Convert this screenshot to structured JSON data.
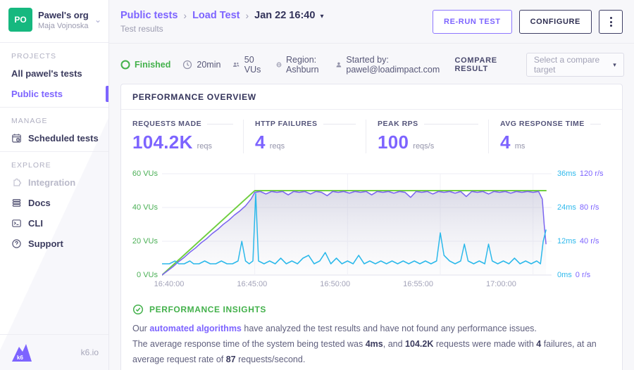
{
  "icons": {
    "chevron_down": "⌄",
    "breadcrumb_sep": "›",
    "caret_down": "▾"
  },
  "colors": {
    "accent_purple": "#7d64ff",
    "status_green": "#43b14b",
    "chart_green": "#6fce3f",
    "chart_purple": "#7b65f0",
    "chart_cyan": "#29b8ea",
    "avatar_green": "#16b87f"
  },
  "sidebar": {
    "org": {
      "avatar_initials": "PO",
      "name": "Pawel's org",
      "subtitle": "Maja Vojnoska"
    },
    "sections": [
      {
        "label": "PROJECTS",
        "items": [
          {
            "label": "All pawel's tests"
          },
          {
            "label": "Public tests"
          }
        ]
      },
      {
        "label": "MANAGE",
        "items": [
          {
            "label": "Scheduled tests"
          }
        ]
      },
      {
        "label": "EXPLORE",
        "items": [
          {
            "label": "Integration"
          },
          {
            "label": "Docs"
          },
          {
            "label": "CLI"
          },
          {
            "label": "Support"
          }
        ]
      }
    ],
    "footer": {
      "logo_text": "k6",
      "site": "k6.io"
    }
  },
  "header": {
    "breadcrumb": [
      "Public tests",
      "Load Test"
    ],
    "current": "Jan 22 16:40",
    "subtitle": "Test results",
    "rerun_label": "RE-RUN TEST",
    "configure_label": "CONFIGURE"
  },
  "status_bar": {
    "status": "Finished",
    "duration": "20min",
    "vus": "50 VUs",
    "region": "Region: Ashburn",
    "started_by": "Started by: pawel@loadimpact.com",
    "compare_label": "COMPARE RESULT",
    "compare_placeholder": "Select a compare target"
  },
  "overview": {
    "title": "PERFORMANCE OVERVIEW",
    "metrics": [
      {
        "label": "REQUESTS MADE",
        "value": "104.2K",
        "unit": "reqs"
      },
      {
        "label": "HTTP FAILURES",
        "value": "4",
        "unit": "reqs"
      },
      {
        "label": "PEAK RPS",
        "value": "100",
        "unit": "reqs/s"
      },
      {
        "label": "AVG RESPONSE TIME",
        "value": "4",
        "unit": "ms"
      }
    ]
  },
  "chart_data": {
    "type": "line",
    "title": "Performance overview timeline",
    "x_unit": "time (HH:MM:SS)",
    "x_ticks": [
      "16:40:00",
      "16:45:00",
      "16:50:00",
      "16:55:00",
      "17:00:00"
    ],
    "x_tick_minutes": [
      0,
      5,
      10,
      15,
      20
    ],
    "x_range_minutes": [
      0,
      21
    ],
    "grid": true,
    "legend": "none",
    "axes": {
      "left": {
        "label": "VUs",
        "ticks": [
          "60 VUs",
          "40 VUs",
          "20 VUs",
          "0 VUs"
        ],
        "max": 60
      },
      "right_ms": {
        "label": "ms",
        "ticks": [
          "36ms",
          "24ms",
          "12ms",
          "0ms"
        ],
        "max": 36
      },
      "right_rps": {
        "label": "r/s",
        "ticks": [
          "120 r/s",
          "80 r/s",
          "40 r/s",
          "0 r/s"
        ],
        "max": 120
      }
    },
    "series": [
      {
        "name": "VUs",
        "axis": "left",
        "color": "#6fce3f",
        "fill": false,
        "points": [
          [
            0,
            0
          ],
          [
            5,
            50
          ],
          [
            20.7,
            50
          ]
        ]
      },
      {
        "name": "Request rate",
        "axis": "right_rps",
        "color": "#7b65f0",
        "fill": true,
        "points": [
          [
            0,
            0
          ],
          [
            0.3,
            5
          ],
          [
            0.6,
            10
          ],
          [
            0.9,
            16
          ],
          [
            1.2,
            21
          ],
          [
            1.5,
            27
          ],
          [
            1.8,
            32
          ],
          [
            2.1,
            38
          ],
          [
            2.4,
            43
          ],
          [
            2.7,
            49
          ],
          [
            3.0,
            54
          ],
          [
            3.3,
            60
          ],
          [
            3.6,
            65
          ],
          [
            3.9,
            71
          ],
          [
            4.2,
            76
          ],
          [
            4.5,
            82
          ],
          [
            4.8,
            90
          ],
          [
            5.0,
            98
          ],
          [
            5.3,
            99
          ],
          [
            5.6,
            96
          ],
          [
            5.9,
            99
          ],
          [
            6.2,
            98
          ],
          [
            6.5,
            99
          ],
          [
            6.8,
            95
          ],
          [
            7.1,
            99
          ],
          [
            7.4,
            98
          ],
          [
            7.7,
            99
          ],
          [
            8.0,
            96
          ],
          [
            8.3,
            99
          ],
          [
            8.6,
            98
          ],
          [
            8.9,
            94
          ],
          [
            9.2,
            99
          ],
          [
            9.5,
            98
          ],
          [
            9.8,
            99
          ],
          [
            10.1,
            97
          ],
          [
            10.4,
            99
          ],
          [
            10.7,
            98
          ],
          [
            11.0,
            99
          ],
          [
            11.3,
            95
          ],
          [
            11.6,
            99
          ],
          [
            11.9,
            98
          ],
          [
            12.2,
            99
          ],
          [
            12.5,
            97
          ],
          [
            12.8,
            99
          ],
          [
            13.1,
            98
          ],
          [
            13.4,
            92
          ],
          [
            13.7,
            99
          ],
          [
            14.0,
            98
          ],
          [
            14.3,
            99
          ],
          [
            14.6,
            96
          ],
          [
            14.9,
            99
          ],
          [
            15.2,
            98
          ],
          [
            15.5,
            99
          ],
          [
            15.8,
            97
          ],
          [
            16.1,
            99
          ],
          [
            16.4,
            93
          ],
          [
            16.7,
            99
          ],
          [
            17.0,
            98
          ],
          [
            17.3,
            99
          ],
          [
            17.6,
            96
          ],
          [
            17.9,
            99
          ],
          [
            18.2,
            98
          ],
          [
            18.5,
            99
          ],
          [
            18.8,
            97
          ],
          [
            19.1,
            99
          ],
          [
            19.4,
            98
          ],
          [
            19.7,
            99
          ],
          [
            20.0,
            98
          ],
          [
            20.3,
            99
          ],
          [
            20.5,
            90
          ],
          [
            20.6,
            60
          ],
          [
            20.7,
            37
          ]
        ]
      },
      {
        "name": "Response time",
        "axis": "right_ms",
        "color": "#29b8ea",
        "fill": false,
        "points": [
          [
            0,
            4
          ],
          [
            0.4,
            4
          ],
          [
            0.7,
            5
          ],
          [
            0.9,
            4
          ],
          [
            1.2,
            4
          ],
          [
            1.5,
            5
          ],
          [
            1.7,
            4
          ],
          [
            2.0,
            4
          ],
          [
            2.3,
            5
          ],
          [
            2.6,
            4
          ],
          [
            2.9,
            4
          ],
          [
            3.2,
            5
          ],
          [
            3.5,
            4
          ],
          [
            3.8,
            4
          ],
          [
            4.1,
            5
          ],
          [
            4.3,
            12
          ],
          [
            4.5,
            5
          ],
          [
            4.7,
            4
          ],
          [
            4.9,
            5
          ],
          [
            5.05,
            29
          ],
          [
            5.2,
            5
          ],
          [
            5.5,
            4
          ],
          [
            5.8,
            5
          ],
          [
            6.1,
            4
          ],
          [
            6.4,
            6
          ],
          [
            6.7,
            4
          ],
          [
            7.0,
            5
          ],
          [
            7.3,
            4
          ],
          [
            7.6,
            6
          ],
          [
            7.9,
            7
          ],
          [
            8.2,
            4
          ],
          [
            8.5,
            5
          ],
          [
            8.8,
            8
          ],
          [
            9.1,
            4
          ],
          [
            9.4,
            6
          ],
          [
            9.7,
            4
          ],
          [
            10.0,
            5
          ],
          [
            10.3,
            4
          ],
          [
            10.6,
            7
          ],
          [
            10.9,
            4
          ],
          [
            11.2,
            5
          ],
          [
            11.5,
            4
          ],
          [
            11.8,
            5
          ],
          [
            12.1,
            4
          ],
          [
            12.4,
            5
          ],
          [
            12.7,
            4
          ],
          [
            13.0,
            5
          ],
          [
            13.3,
            4
          ],
          [
            13.6,
            5
          ],
          [
            13.9,
            4
          ],
          [
            14.2,
            5
          ],
          [
            14.5,
            4
          ],
          [
            14.8,
            5
          ],
          [
            15.0,
            15
          ],
          [
            15.2,
            7
          ],
          [
            15.5,
            5
          ],
          [
            15.8,
            4
          ],
          [
            16.1,
            5
          ],
          [
            16.3,
            11
          ],
          [
            16.5,
            5
          ],
          [
            16.8,
            4
          ],
          [
            17.1,
            5
          ],
          [
            17.4,
            4
          ],
          [
            17.6,
            11
          ],
          [
            17.8,
            5
          ],
          [
            18.1,
            4
          ],
          [
            18.4,
            5
          ],
          [
            18.7,
            4
          ],
          [
            19.0,
            6
          ],
          [
            19.3,
            4
          ],
          [
            19.6,
            5
          ],
          [
            19.9,
            4
          ],
          [
            20.2,
            5
          ],
          [
            20.4,
            4
          ],
          [
            20.55,
            12
          ],
          [
            20.7,
            16
          ]
        ]
      }
    ]
  },
  "insights": {
    "title": "PERFORMANCE INSIGHTS",
    "p1_pre": "Our ",
    "p1_link": "automated algorithms",
    "p1_post": " have analyzed the test results and have not found any performance issues.",
    "p2_s1": "The average response time of the system being tested was ",
    "p2_b1": "4ms",
    "p2_s2": ", and ",
    "p2_b2": "104.2K",
    "p2_s3": " requests were made with ",
    "p2_b3": "4",
    "p2_s4": " failures, at an average request rate of ",
    "p2_b4": "87",
    "p2_s5": " requests/second."
  }
}
